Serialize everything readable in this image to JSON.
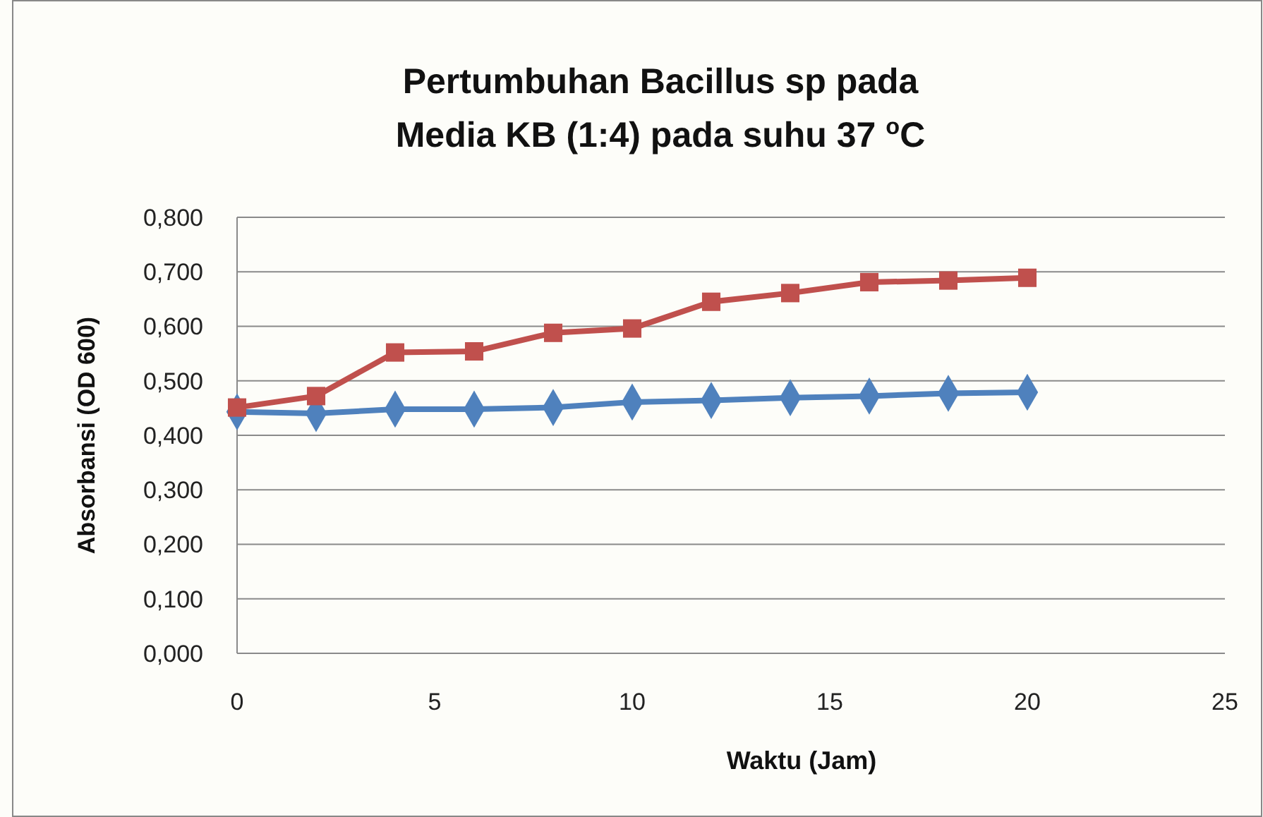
{
  "chart_data": {
    "type": "line",
    "title": "Pertumbuhan Bacillus sp pada Media  KB (1:4) pada suhu 37 $^{o}$C",
    "xlabel": "Waktu (Jam)",
    "ylabel": "Absorbansi (OD 600)",
    "x": [
      0,
      2,
      4,
      6,
      8,
      10,
      12,
      14,
      16,
      18,
      20
    ],
    "series": [
      {
        "color": "#4f81bd",
        "marker": "diamond",
        "values": [
          0.443,
          0.44,
          0.448,
          0.448,
          0.451,
          0.461,
          0.464,
          0.469,
          0.472,
          0.477,
          0.479
        ]
      },
      {
        "color": "#c0504d",
        "marker": "square",
        "values": [
          0.451,
          0.472,
          0.552,
          0.554,
          0.588,
          0.596,
          0.645,
          0.661,
          0.681,
          0.684,
          0.689
        ]
      }
    ],
    "xlim": [
      0,
      25
    ],
    "xticks": [
      0,
      5,
      10,
      15,
      20,
      25
    ],
    "ylim": [
      0,
      0.8
    ],
    "yticks": [
      {
        "value": 0,
        "label": "0,000"
      },
      {
        "value": 0.1,
        "label": "0,100"
      },
      {
        "value": 0.2,
        "label": "0,200"
      },
      {
        "value": 0.3,
        "label": "0,300"
      },
      {
        "value": 0.4,
        "label": "0,400"
      },
      {
        "value": 0.5,
        "label": "0,500"
      },
      {
        "value": 0.6,
        "label": "0,600"
      },
      {
        "value": 0.7,
        "label": "0,700"
      },
      {
        "value": 0.8,
        "label": "0,800"
      }
    ],
    "grid": "y"
  }
}
